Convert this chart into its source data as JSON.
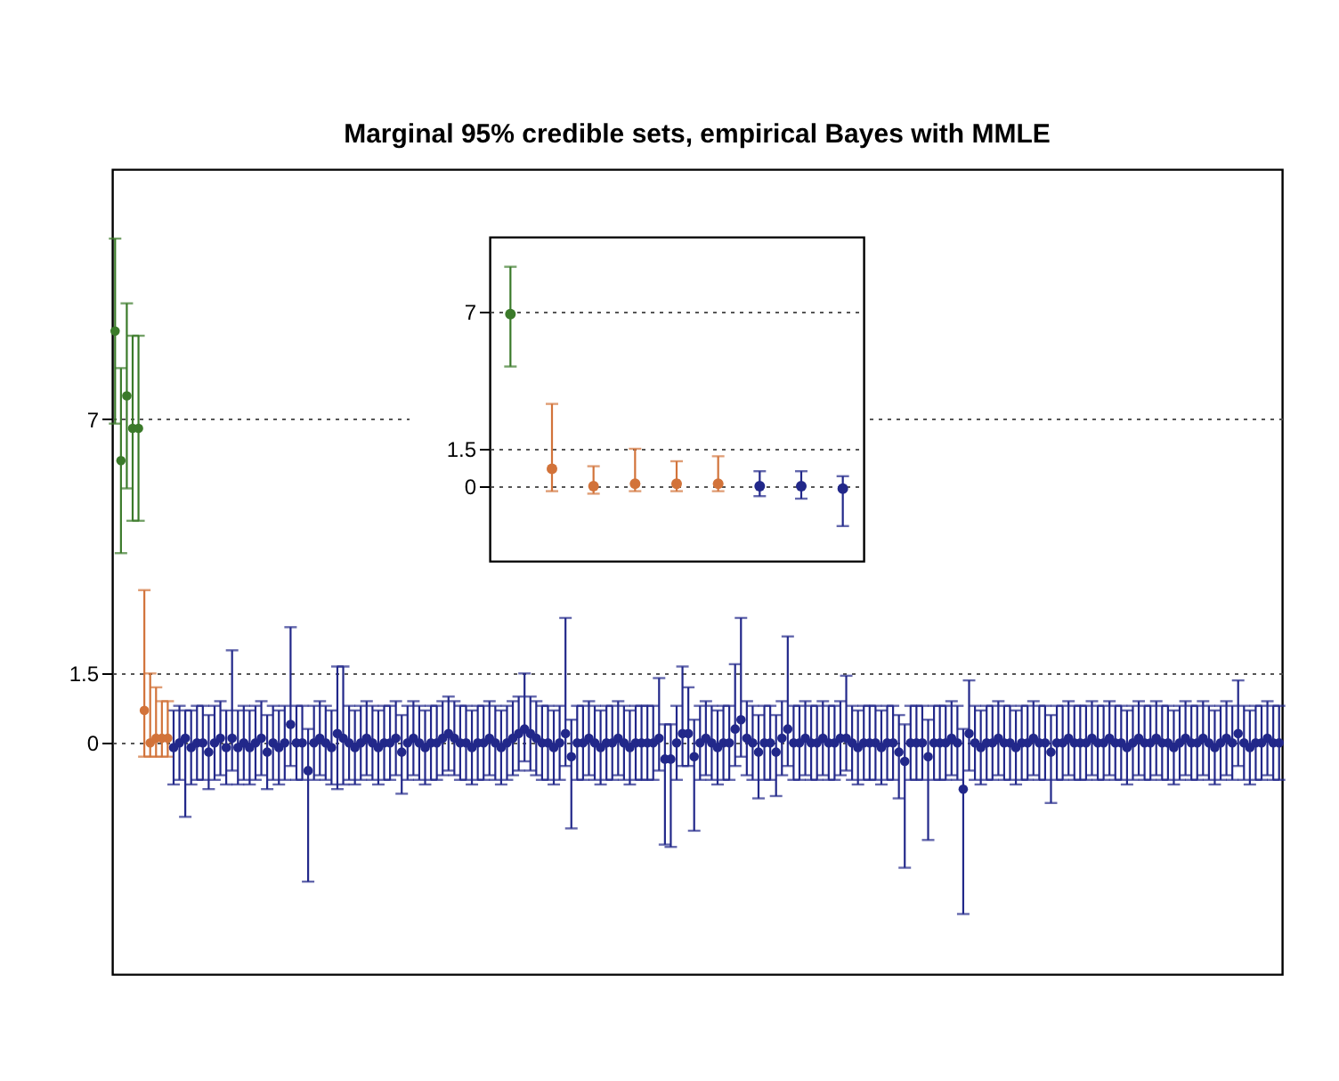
{
  "chart_data": [
    {
      "type": "scatter",
      "title": "Marginal 95% credible sets, empirical Bayes with MMLE",
      "marker": "circle",
      "grid": "y",
      "tick_labels": "y",
      "categories": [
        null,
        null,
        null,
        null,
        null,
        null,
        null,
        null,
        null,
        null,
        null,
        null,
        null,
        null,
        null,
        null,
        null,
        null,
        null,
        null,
        null,
        null,
        null,
        null,
        null,
        null,
        null,
        null,
        null,
        null,
        null,
        null,
        null,
        null,
        null,
        null,
        null,
        null,
        null,
        null,
        null,
        null,
        null,
        null,
        null,
        null,
        null,
        null,
        null,
        null,
        null,
        null,
        null,
        null,
        null,
        null,
        null,
        null,
        null,
        null,
        null,
        null,
        null,
        null,
        null,
        null,
        null,
        null,
        null,
        null,
        null,
        null,
        null,
        null,
        null,
        null,
        null,
        null,
        null,
        null,
        null,
        null,
        null,
        null,
        null,
        null,
        null,
        null,
        null,
        null,
        null,
        null,
        null,
        null,
        null,
        null,
        null,
        null,
        null,
        null,
        null,
        null,
        null,
        null,
        null,
        null,
        null,
        null,
        null,
        null,
        null,
        null,
        null,
        null,
        null,
        null,
        null,
        null,
        null,
        null,
        null,
        null,
        null,
        null,
        null,
        null,
        null,
        null,
        null,
        null,
        null,
        null,
        null,
        null,
        null,
        null,
        null,
        null,
        null,
        null,
        null,
        null,
        null,
        null,
        null,
        null,
        null,
        null,
        null,
        null,
        null,
        null,
        null,
        null,
        null,
        null,
        null,
        null,
        null,
        null,
        null,
        null,
        null,
        null,
        null,
        null,
        null,
        null,
        null,
        null,
        null,
        null,
        null,
        null,
        null,
        null,
        null,
        null,
        null,
        null,
        null,
        null,
        null,
        null,
        null,
        null,
        null,
        null,
        null,
        null,
        null,
        null,
        null,
        null,
        null,
        null,
        null,
        null,
        null,
        null
      ],
      "values": [
        8.9,
        6.1,
        7.5,
        6.8,
        6.8,
        0.7,
        0,
        0.1,
        0.1,
        0.1,
        -0.1,
        0,
        0.1,
        -0.1,
        0,
        0,
        -0.2,
        0,
        0.1,
        -0.1,
        0.1,
        -0.1,
        0,
        -0.1,
        0,
        0.1,
        -0.2,
        0,
        -0.1,
        0,
        0.4,
        0,
        0,
        -0.6,
        0,
        0.1,
        0,
        -0.1,
        0.2,
        0.1,
        0,
        -0.1,
        0,
        0.1,
        0,
        -0.1,
        0,
        0,
        0.1,
        -0.2,
        0,
        0.1,
        0,
        -0.1,
        0,
        0,
        0.1,
        0.2,
        0.1,
        0,
        0,
        -0.1,
        0,
        0,
        0.1,
        0,
        -0.1,
        0,
        0.1,
        0.2,
        0.3,
        0.2,
        0.1,
        0,
        0,
        -0.1,
        0,
        0.2,
        -0.3,
        0,
        0,
        0.1,
        0,
        -0.1,
        0,
        0,
        0.1,
        0,
        -0.1,
        0,
        0,
        0,
        0,
        0.1,
        -0.35,
        -0.35,
        0,
        0.2,
        0.2,
        -0.3,
        0,
        0.1,
        0,
        -0.1,
        0,
        0,
        0.3,
        0.5,
        0.1,
        0,
        -0.2,
        0,
        0,
        -0.2,
        0.1,
        0.3,
        0,
        0,
        0.1,
        0,
        0,
        0.1,
        0,
        0,
        0.1,
        0.1,
        0,
        -0.1,
        0,
        0,
        0,
        -0.1,
        0,
        0,
        -0.2,
        -0.4,
        0,
        0,
        0,
        -0.3,
        0,
        0,
        0,
        0.1,
        0,
        -1.0,
        0.2,
        0,
        -0.1,
        0,
        0,
        0.1,
        0,
        0,
        -0.1,
        0,
        0,
        0.1,
        0,
        0,
        -0.2,
        0,
        0,
        0.1,
        0,
        0,
        0,
        0.1,
        0,
        0,
        0.1,
        0,
        0,
        -0.1,
        0,
        0.1,
        0,
        0,
        0.1,
        0,
        0,
        -0.1,
        0,
        0.1,
        0,
        0,
        0.1,
        0,
        -0.1,
        0,
        0.1,
        0,
        0.2,
        0,
        -0.1,
        0,
        0,
        0.1,
        0,
        0
      ],
      "errors": [
        [
          6.9,
          10.9
        ],
        [
          4.1,
          8.1
        ],
        [
          5.5,
          9.5
        ],
        [
          4.8,
          8.8
        ],
        [
          4.8,
          8.8
        ],
        [
          -0.3,
          3.3
        ],
        [
          -0.3,
          1.5
        ],
        [
          -0.3,
          1.2
        ],
        [
          -0.3,
          0.9
        ],
        [
          -0.3,
          0.9
        ],
        0.8,
        0.8,
        [
          -1.6,
          0.7
        ],
        0.8,
        0.8,
        0.8,
        0.8,
        0.8,
        0.8,
        0.8,
        [
          -0.6,
          2.0
        ],
        0.8,
        0.8,
        0.8,
        0.8,
        0.8,
        0.8,
        0.8,
        0.8,
        0.8,
        [
          -0.5,
          2.5
        ],
        0.8,
        0.8,
        [
          -3.0,
          0.3
        ],
        0.8,
        0.8,
        0.8,
        0.8,
        [
          -1.0,
          1.65
        ],
        [
          -0.9,
          1.65
        ],
        0.8,
        0.8,
        0.8,
        0.8,
        0.8,
        0.8,
        0.8,
        0.8,
        0.8,
        [
          -1.1,
          0.6
        ],
        0.8,
        0.8,
        0.8,
        0.8,
        0.8,
        0.8,
        0.8,
        0.8,
        0.8,
        0.8,
        0.8,
        0.8,
        0.8,
        0.8,
        0.8,
        0.8,
        0.8,
        0.8,
        0.8,
        0.8,
        [
          -0.4,
          1.5
        ],
        0.8,
        0.8,
        0.8,
        0.8,
        0.8,
        0.8,
        [
          -0.5,
          2.7
        ],
        [
          -1.85,
          0.5
        ],
        0.8,
        0.8,
        0.8,
        0.8,
        0.8,
        0.8,
        0.8,
        0.8,
        0.8,
        0.8,
        0.8,
        0.8,
        0.8,
        0.8,
        [
          -0.6,
          1.4
        ],
        [
          -2.2,
          0.4
        ],
        [
          -2.25,
          0.4
        ],
        0.8,
        [
          -0.5,
          1.65
        ],
        [
          -0.5,
          1.2
        ],
        [
          -1.9,
          0.5
        ],
        0.8,
        0.8,
        0.8,
        0.8,
        0.8,
        0.8,
        [
          -0.5,
          1.7
        ],
        [
          -0.3,
          2.7
        ],
        0.8,
        0.8,
        [
          -1.2,
          0.6
        ],
        0.8,
        0.8,
        [
          -1.15,
          0.6
        ],
        0.8,
        [
          -0.5,
          2.3
        ],
        0.8,
        0.8,
        0.8,
        0.8,
        0.8,
        0.8,
        0.8,
        0.8,
        0.8,
        [
          -0.6,
          1.45
        ],
        0.8,
        0.8,
        0.8,
        0.8,
        0.8,
        0.8,
        0.8,
        0.8,
        [
          -1.2,
          0.6
        ],
        [
          -2.7,
          0.4
        ],
        0.8,
        0.8,
        0.8,
        [
          -2.1,
          0.5
        ],
        0.8,
        0.8,
        0.8,
        0.8,
        0.8,
        [
          -3.7,
          0.3
        ],
        [
          -0.6,
          1.35
        ],
        0.8,
        0.8,
        0.8,
        0.8,
        0.8,
        0.8,
        0.8,
        0.8,
        0.8,
        0.8,
        0.8,
        0.8,
        0.8,
        [
          -1.3,
          0.6
        ],
        0.8,
        0.8,
        0.8,
        0.8,
        0.8,
        0.8,
        0.8,
        0.8,
        0.8,
        0.8,
        0.8,
        0.8,
        0.8,
        0.8,
        0.8,
        0.8,
        0.8,
        0.8,
        0.8,
        0.8,
        0.8,
        0.8,
        0.8,
        0.8,
        0.8,
        0.8,
        0.8,
        0.8,
        0.8,
        0.8,
        0.8,
        [
          -0.5,
          1.35
        ],
        0.8,
        0.8,
        0.8,
        0.8,
        0.8,
        0.8,
        0.8
      ],
      "colors": [
        "#3b7a2a",
        "#3b7a2a",
        "#3b7a2a",
        "#3b7a2a",
        "#3b7a2a",
        "#d2733a",
        "#d2733a",
        "#d2733a",
        "#d2733a",
        "#d2733a",
        "#22288a",
        "#22288a",
        "#22288a",
        "#22288a",
        "#22288a",
        "#22288a",
        "#22288a",
        "#22288a",
        "#22288a",
        "#22288a",
        "#22288a",
        "#22288a",
        "#22288a",
        "#22288a",
        "#22288a",
        "#22288a",
        "#22288a",
        "#22288a",
        "#22288a",
        "#22288a",
        "#22288a",
        "#22288a",
        "#22288a",
        "#22288a",
        "#22288a",
        "#22288a",
        "#22288a",
        "#22288a",
        "#22288a",
        "#22288a",
        "#22288a",
        "#22288a",
        "#22288a",
        "#22288a",
        "#22288a",
        "#22288a",
        "#22288a",
        "#22288a",
        "#22288a",
        "#22288a",
        "#22288a",
        "#22288a",
        "#22288a",
        "#22288a",
        "#22288a",
        "#22288a",
        "#22288a",
        "#22288a",
        "#22288a",
        "#22288a",
        "#22288a",
        "#22288a",
        "#22288a",
        "#22288a",
        "#22288a",
        "#22288a",
        "#22288a",
        "#22288a",
        "#22288a",
        "#22288a",
        "#22288a",
        "#22288a",
        "#22288a",
        "#22288a",
        "#22288a",
        "#22288a",
        "#22288a",
        "#22288a",
        "#22288a",
        "#22288a",
        "#22288a",
        "#22288a",
        "#22288a",
        "#22288a",
        "#22288a",
        "#22288a",
        "#22288a",
        "#22288a",
        "#22288a",
        "#22288a",
        "#22288a",
        "#22288a",
        "#22288a",
        "#22288a",
        "#22288a",
        "#22288a",
        "#22288a",
        "#22288a",
        "#22288a",
        "#22288a",
        "#22288a",
        "#22288a",
        "#22288a",
        "#22288a",
        "#22288a",
        "#22288a",
        "#22288a",
        "#22288a",
        "#22288a",
        "#22288a",
        "#22288a",
        "#22288a",
        "#22288a",
        "#22288a",
        "#22288a",
        "#22288a",
        "#22288a",
        "#22288a",
        "#22288a",
        "#22288a",
        "#22288a",
        "#22288a",
        "#22288a",
        "#22288a",
        "#22288a",
        "#22288a",
        "#22288a",
        "#22288a",
        "#22288a",
        "#22288a",
        "#22288a",
        "#22288a",
        "#22288a",
        "#22288a",
        "#22288a",
        "#22288a",
        "#22288a",
        "#22288a",
        "#22288a",
        "#22288a",
        "#22288a",
        "#22288a",
        "#22288a",
        "#22288a",
        "#22288a",
        "#22288a",
        "#22288a",
        "#22288a",
        "#22288a",
        "#22288a",
        "#22288a",
        "#22288a",
        "#22288a",
        "#22288a",
        "#22288a",
        "#22288a",
        "#22288a",
        "#22288a",
        "#22288a",
        "#22288a",
        "#22288a",
        "#22288a",
        "#22288a",
        "#22288a",
        "#22288a",
        "#22288a",
        "#22288a",
        "#22288a",
        "#22288a",
        "#22288a",
        "#22288a",
        "#22288a",
        "#22288a",
        "#22288a",
        "#22288a",
        "#22288a",
        "#22288a",
        "#22288a",
        "#22288a",
        "#22288a",
        "#22288a",
        "#22288a",
        "#22288a",
        "#22288a",
        "#22288a",
        "#22288a",
        "#22288a",
        "#22288a",
        "#22288a",
        "#22288a",
        "#22288a",
        "#22288a",
        "#22288a",
        "#22288a",
        "#22288a",
        "#22288a",
        "#22288a",
        "#22288a",
        "#22288a",
        "#22288a"
      ],
      "ylim": [
        -5,
        12.4
      ],
      "yticks": [
        0,
        1.5,
        7
      ]
    },
    {
      "type": "scatter",
      "marker": "circle",
      "grid": "y",
      "tick_labels": "y",
      "categories": [
        null,
        null,
        null,
        null,
        null,
        null,
        null,
        null,
        null
      ],
      "values": [
        6.9,
        0.7,
        0,
        0.1,
        0.1,
        0.1,
        0,
        0,
        -0.1
      ],
      "errors": [
        [
          4.8,
          8.8
        ],
        [
          -0.2,
          3.3
        ],
        [
          -0.3,
          0.8
        ],
        [
          -0.2,
          1.5
        ],
        [
          -0.2,
          1.0
        ],
        [
          -0.2,
          1.2
        ],
        [
          -0.4,
          0.6
        ],
        [
          -0.5,
          0.6
        ],
        [
          -1.6,
          0.4
        ]
      ],
      "colors": [
        "#3b7a2a",
        "#d2733a",
        "#d2733a",
        "#d2733a",
        "#d2733a",
        "#d2733a",
        "#22288a",
        "#22288a",
        "#22288a"
      ],
      "ylim": [
        -3,
        10
      ],
      "yticks": [
        0,
        1.5,
        7
      ]
    }
  ]
}
